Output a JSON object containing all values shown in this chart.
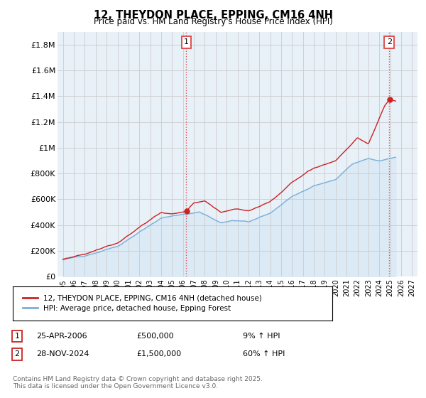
{
  "title": "12, THEYDON PLACE, EPPING, CM16 4NH",
  "subtitle": "Price paid vs. HM Land Registry's House Price Index (HPI)",
  "ylabel_ticks": [
    "£0",
    "£200K",
    "£400K",
    "£600K",
    "£800K",
    "£1M",
    "£1.2M",
    "£1.4M",
    "£1.6M",
    "£1.8M"
  ],
  "ytick_vals": [
    0,
    200000,
    400000,
    600000,
    800000,
    1000000,
    1200000,
    1400000,
    1600000,
    1800000
  ],
  "ylim": [
    0,
    1900000
  ],
  "xlim_start": 1994.5,
  "xlim_end": 2027.5,
  "xtick_years": [
    1995,
    1996,
    1997,
    1998,
    1999,
    2000,
    2001,
    2002,
    2003,
    2004,
    2005,
    2006,
    2007,
    2008,
    2009,
    2010,
    2011,
    2012,
    2013,
    2014,
    2015,
    2016,
    2017,
    2018,
    2019,
    2020,
    2021,
    2022,
    2023,
    2024,
    2025,
    2026,
    2027
  ],
  "sale1_x": 2006.31,
  "sale1_y": 500000,
  "sale2_x": 2024.91,
  "sale2_y": 1500000,
  "grid_color": "#cccccc",
  "hpi_line_color": "#7aaed6",
  "hpi_fill_color": "#d6e8f5",
  "price_line_color": "#cc2222",
  "sale_vline_color": "#dd4444",
  "background_color": "#f0f4f8",
  "plot_bg_color": "#e8f0f8",
  "legend_line1": "12, THEYDON PLACE, EPPING, CM16 4NH (detached house)",
  "legend_line2": "HPI: Average price, detached house, Epping Forest",
  "note1_date": "25-APR-2006",
  "note1_price": "£500,000",
  "note1_change": "9% ↑ HPI",
  "note2_date": "28-NOV-2024",
  "note2_price": "£1,500,000",
  "note2_change": "60% ↑ HPI",
  "footer": "Contains HM Land Registry data © Crown copyright and database right 2025.\nThis data is licensed under the Open Government Licence v3.0."
}
